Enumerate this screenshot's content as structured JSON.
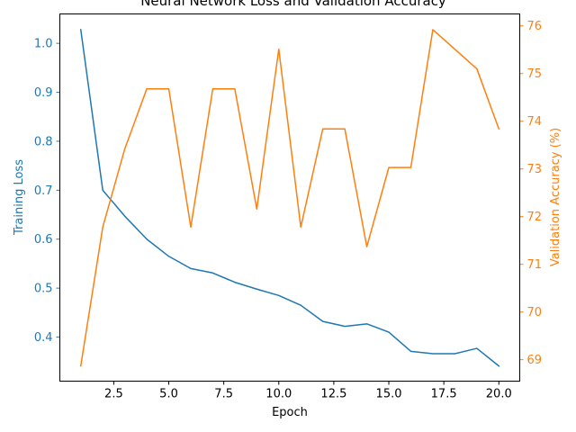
{
  "chart_data": {
    "type": "line",
    "title": "Neural Network Loss and Validation Accuracy",
    "xlabel": "Epoch",
    "x": [
      1,
      2,
      3,
      4,
      5,
      6,
      7,
      8,
      9,
      10,
      11,
      12,
      13,
      14,
      15,
      16,
      17,
      18,
      19,
      20
    ],
    "xlim": [
      0.05,
      20.95
    ],
    "x_ticks": [
      2.5,
      5.0,
      7.5,
      10.0,
      12.5,
      15.0,
      17.5,
      20.0
    ],
    "x_tick_labels": [
      "2.5",
      "5.0",
      "7.5",
      "10.0",
      "12.5",
      "15.0",
      "17.5",
      "20.0"
    ],
    "grid": false,
    "axes": {
      "left": {
        "label": "Training Loss",
        "color": "#1f77b4",
        "ylim": [
          0.31,
          1.06
        ],
        "ticks": [
          0.4,
          0.5,
          0.6,
          0.7,
          0.8,
          0.9,
          1.0
        ],
        "tick_labels": [
          "0.4",
          "0.5",
          "0.6",
          "0.7",
          "0.8",
          "0.9",
          "1.0"
        ]
      },
      "right": {
        "label": "Validation Accuracy (%)",
        "color": "#ff7f0e",
        "ylim": [
          68.55,
          76.25
        ],
        "ticks": [
          69,
          70,
          71,
          72,
          73,
          74,
          75,
          76
        ],
        "tick_labels": [
          "69",
          "70",
          "71",
          "72",
          "73",
          "74",
          "75",
          "76"
        ]
      }
    },
    "series": [
      {
        "name": "Training Loss",
        "axis": "left",
        "color": "#1f77b4",
        "values": [
          1.028,
          0.7,
          0.647,
          0.6,
          0.565,
          0.54,
          0.531,
          0.512,
          0.498,
          0.485,
          0.465,
          0.432,
          0.422,
          0.427,
          0.41,
          0.371,
          0.366,
          0.366,
          0.377,
          0.341
        ]
      },
      {
        "name": "Validation Accuracy (%)",
        "axis": "right",
        "color": "#ff7f0e",
        "values": [
          68.87,
          71.78,
          73.42,
          74.68,
          74.68,
          71.78,
          74.68,
          74.68,
          72.16,
          75.51,
          71.78,
          73.84,
          73.84,
          71.37,
          73.03,
          73.03,
          75.92,
          75.51,
          75.1,
          73.84
        ]
      }
    ]
  }
}
